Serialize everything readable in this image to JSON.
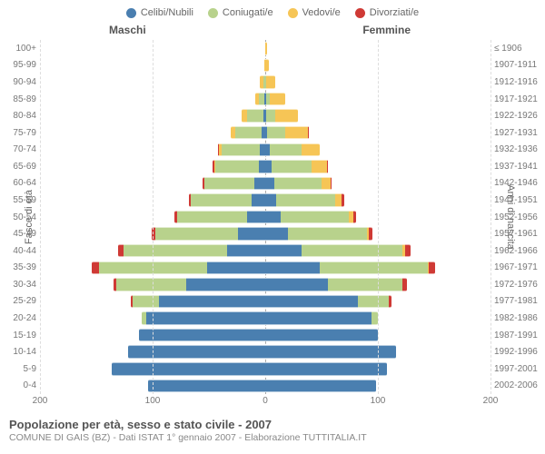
{
  "chart": {
    "type": "population-pyramid",
    "legend": [
      {
        "label": "Celibi/Nubili",
        "color": "#4a7fb0"
      },
      {
        "label": "Coniugati/e",
        "color": "#b8d28c"
      },
      {
        "label": "Vedovi/e",
        "color": "#f6c556"
      },
      {
        "label": "Divorziati/e",
        "color": "#cf3a35"
      }
    ],
    "male_header": "Maschi",
    "female_header": "Femmine",
    "left_axis_title": "Fasce di età",
    "right_axis_title": "Anni di nascita",
    "age_labels": [
      "100+",
      "95-99",
      "90-94",
      "85-89",
      "80-84",
      "75-79",
      "70-74",
      "65-69",
      "60-64",
      "55-59",
      "50-54",
      "45-49",
      "40-44",
      "35-39",
      "30-34",
      "25-29",
      "20-24",
      "15-19",
      "10-14",
      "5-9",
      "0-4"
    ],
    "year_labels": [
      "≤ 1906",
      "1907-1911",
      "1912-1916",
      "1917-1921",
      "1922-1926",
      "1927-1931",
      "1932-1936",
      "1937-1941",
      "1942-1946",
      "1947-1951",
      "1952-1956",
      "1957-1961",
      "1962-1966",
      "1967-1971",
      "1972-1976",
      "1977-1981",
      "1982-1986",
      "1987-1991",
      "1992-1996",
      "1997-2001",
      "2002-2006"
    ],
    "x_max": 200,
    "x_ticks_male": [
      200,
      100,
      0
    ],
    "x_ticks_female": [
      100,
      200
    ],
    "background_color": "#ffffff",
    "grid_color": "#dddddd",
    "center_line_color": "#aaaaaa",
    "label_fontsize": 10,
    "rows": [
      {
        "m": [
          0,
          0,
          0,
          0
        ],
        "f": [
          0,
          0,
          2,
          0
        ]
      },
      {
        "m": [
          0,
          0,
          1,
          0
        ],
        "f": [
          0,
          0,
          3,
          0
        ]
      },
      {
        "m": [
          0,
          2,
          3,
          0
        ],
        "f": [
          0,
          1,
          8,
          0
        ]
      },
      {
        "m": [
          1,
          5,
          3,
          0
        ],
        "f": [
          1,
          3,
          14,
          0
        ]
      },
      {
        "m": [
          2,
          14,
          5,
          0
        ],
        "f": [
          1,
          8,
          20,
          0
        ]
      },
      {
        "m": [
          3,
          24,
          4,
          0
        ],
        "f": [
          2,
          16,
          20,
          1
        ]
      },
      {
        "m": [
          5,
          34,
          2,
          1
        ],
        "f": [
          4,
          28,
          16,
          0
        ]
      },
      {
        "m": [
          6,
          38,
          1,
          2
        ],
        "f": [
          6,
          35,
          14,
          1
        ]
      },
      {
        "m": [
          10,
          44,
          0,
          2
        ],
        "f": [
          8,
          42,
          8,
          1
        ]
      },
      {
        "m": [
          12,
          54,
          0,
          2
        ],
        "f": [
          10,
          52,
          6,
          2
        ]
      },
      {
        "m": [
          16,
          62,
          0,
          3
        ],
        "f": [
          14,
          60,
          4,
          3
        ]
      },
      {
        "m": [
          24,
          74,
          0,
          3
        ],
        "f": [
          20,
          70,
          2,
          3
        ]
      },
      {
        "m": [
          34,
          92,
          0,
          5
        ],
        "f": [
          32,
          90,
          2,
          5
        ]
      },
      {
        "m": [
          52,
          96,
          0,
          6
        ],
        "f": [
          48,
          96,
          1,
          6
        ]
      },
      {
        "m": [
          70,
          62,
          0,
          3
        ],
        "f": [
          56,
          66,
          0,
          4
        ]
      },
      {
        "m": [
          94,
          24,
          0,
          1
        ],
        "f": [
          82,
          28,
          0,
          2
        ]
      },
      {
        "m": [
          106,
          4,
          0,
          0
        ],
        "f": [
          94,
          6,
          0,
          0
        ]
      },
      {
        "m": [
          112,
          0,
          0,
          0
        ],
        "f": [
          100,
          0,
          0,
          0
        ]
      },
      {
        "m": [
          122,
          0,
          0,
          0
        ],
        "f": [
          116,
          0,
          0,
          0
        ]
      },
      {
        "m": [
          136,
          0,
          0,
          0
        ],
        "f": [
          108,
          0,
          0,
          0
        ]
      },
      {
        "m": [
          104,
          0,
          0,
          0
        ],
        "f": [
          98,
          0,
          0,
          0
        ]
      }
    ]
  },
  "footer": {
    "title": "Popolazione per età, sesso e stato civile - 2007",
    "subtitle": "COMUNE DI GAIS (BZ) - Dati ISTAT 1° gennaio 2007 - Elaborazione TUTTITALIA.IT"
  }
}
